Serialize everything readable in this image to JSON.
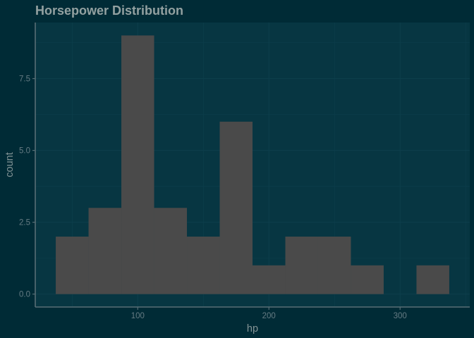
{
  "chart_data": {
    "type": "bar",
    "subtype": "histogram",
    "title": "Horsepower Distribution",
    "xlabel": "hp",
    "ylabel": "count",
    "bins": [
      {
        "x_start": 37.5,
        "x_end": 62.5,
        "count": 2
      },
      {
        "x_start": 62.5,
        "x_end": 87.5,
        "count": 3
      },
      {
        "x_start": 87.5,
        "x_end": 112.5,
        "count": 9
      },
      {
        "x_start": 112.5,
        "x_end": 137.5,
        "count": 3
      },
      {
        "x_start": 137.5,
        "x_end": 162.5,
        "count": 2
      },
      {
        "x_start": 162.5,
        "x_end": 187.5,
        "count": 6
      },
      {
        "x_start": 187.5,
        "x_end": 212.5,
        "count": 1
      },
      {
        "x_start": 212.5,
        "x_end": 237.5,
        "count": 2
      },
      {
        "x_start": 237.5,
        "x_end": 262.5,
        "count": 2
      },
      {
        "x_start": 262.5,
        "x_end": 287.5,
        "count": 1
      },
      {
        "x_start": 287.5,
        "x_end": 312.5,
        "count": 0
      },
      {
        "x_start": 312.5,
        "x_end": 337.5,
        "count": 1
      }
    ],
    "xlim": [
      21.875,
      353.125
    ],
    "ylim": [
      -0.45,
      9.45
    ],
    "x_ticks": [
      {
        "value": 100,
        "label": "100"
      },
      {
        "value": 200,
        "label": "200"
      },
      {
        "value": 300,
        "label": "300"
      }
    ],
    "y_ticks": [
      {
        "value": 0,
        "label": "0.0"
      },
      {
        "value": 2.5,
        "label": "2.5"
      },
      {
        "value": 5,
        "label": "5.0"
      },
      {
        "value": 7.5,
        "label": "7.5"
      }
    ],
    "grid": true,
    "legend": "none",
    "colors": {
      "background": "#002b36",
      "panel": "#073642",
      "bar_fill": "#4a4a4a",
      "grid": "#0d3f4c",
      "axis_line": "#586e75",
      "title": "#93a1a1",
      "axis_title": "#839496",
      "tick_label": "#657b83"
    }
  }
}
